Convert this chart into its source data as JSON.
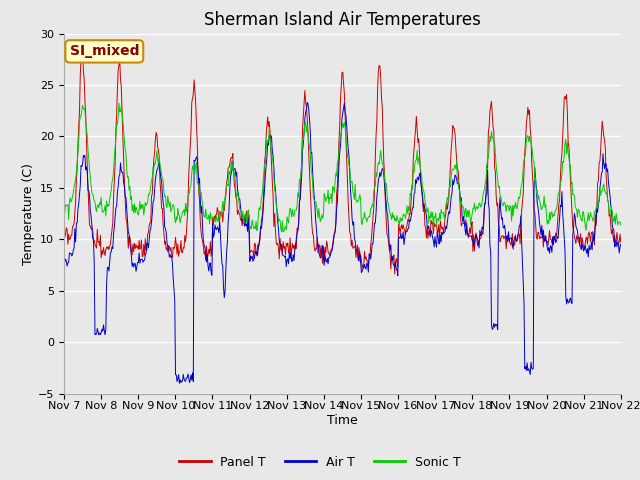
{
  "title": "Sherman Island Air Temperatures",
  "xlabel": "Time",
  "ylabel": "Temperature (C)",
  "ylim": [
    -5,
    30
  ],
  "yticks": [
    -5,
    0,
    5,
    10,
    15,
    20,
    25,
    30
  ],
  "xlim": [
    0,
    15
  ],
  "xtick_labels": [
    "Nov 7",
    "Nov 8",
    "Nov 9",
    "Nov 10",
    "Nov 11",
    "Nov 12",
    "Nov 13",
    "Nov 14",
    "Nov 15",
    "Nov 16",
    "Nov 17",
    "Nov 18",
    "Nov 19",
    "Nov 20",
    "Nov 21",
    "Nov 22"
  ],
  "xtick_positions": [
    0,
    1,
    2,
    3,
    4,
    5,
    6,
    7,
    8,
    9,
    10,
    11,
    12,
    13,
    14,
    15
  ],
  "panel_color": "#cc0000",
  "air_color": "#0000cc",
  "sonic_color": "#00cc00",
  "fig_facecolor": "#e8e8e8",
  "plot_facecolor": "#e8e8e8",
  "annotation_text": "SI_mixed",
  "annotation_bg": "#ffffcc",
  "annotation_border": "#cc8800",
  "annotation_text_color": "#880000",
  "legend_entries": [
    "Panel T",
    "Air T",
    "Sonic T"
  ],
  "title_fontsize": 12,
  "axis_label_fontsize": 9,
  "tick_fontsize": 8
}
